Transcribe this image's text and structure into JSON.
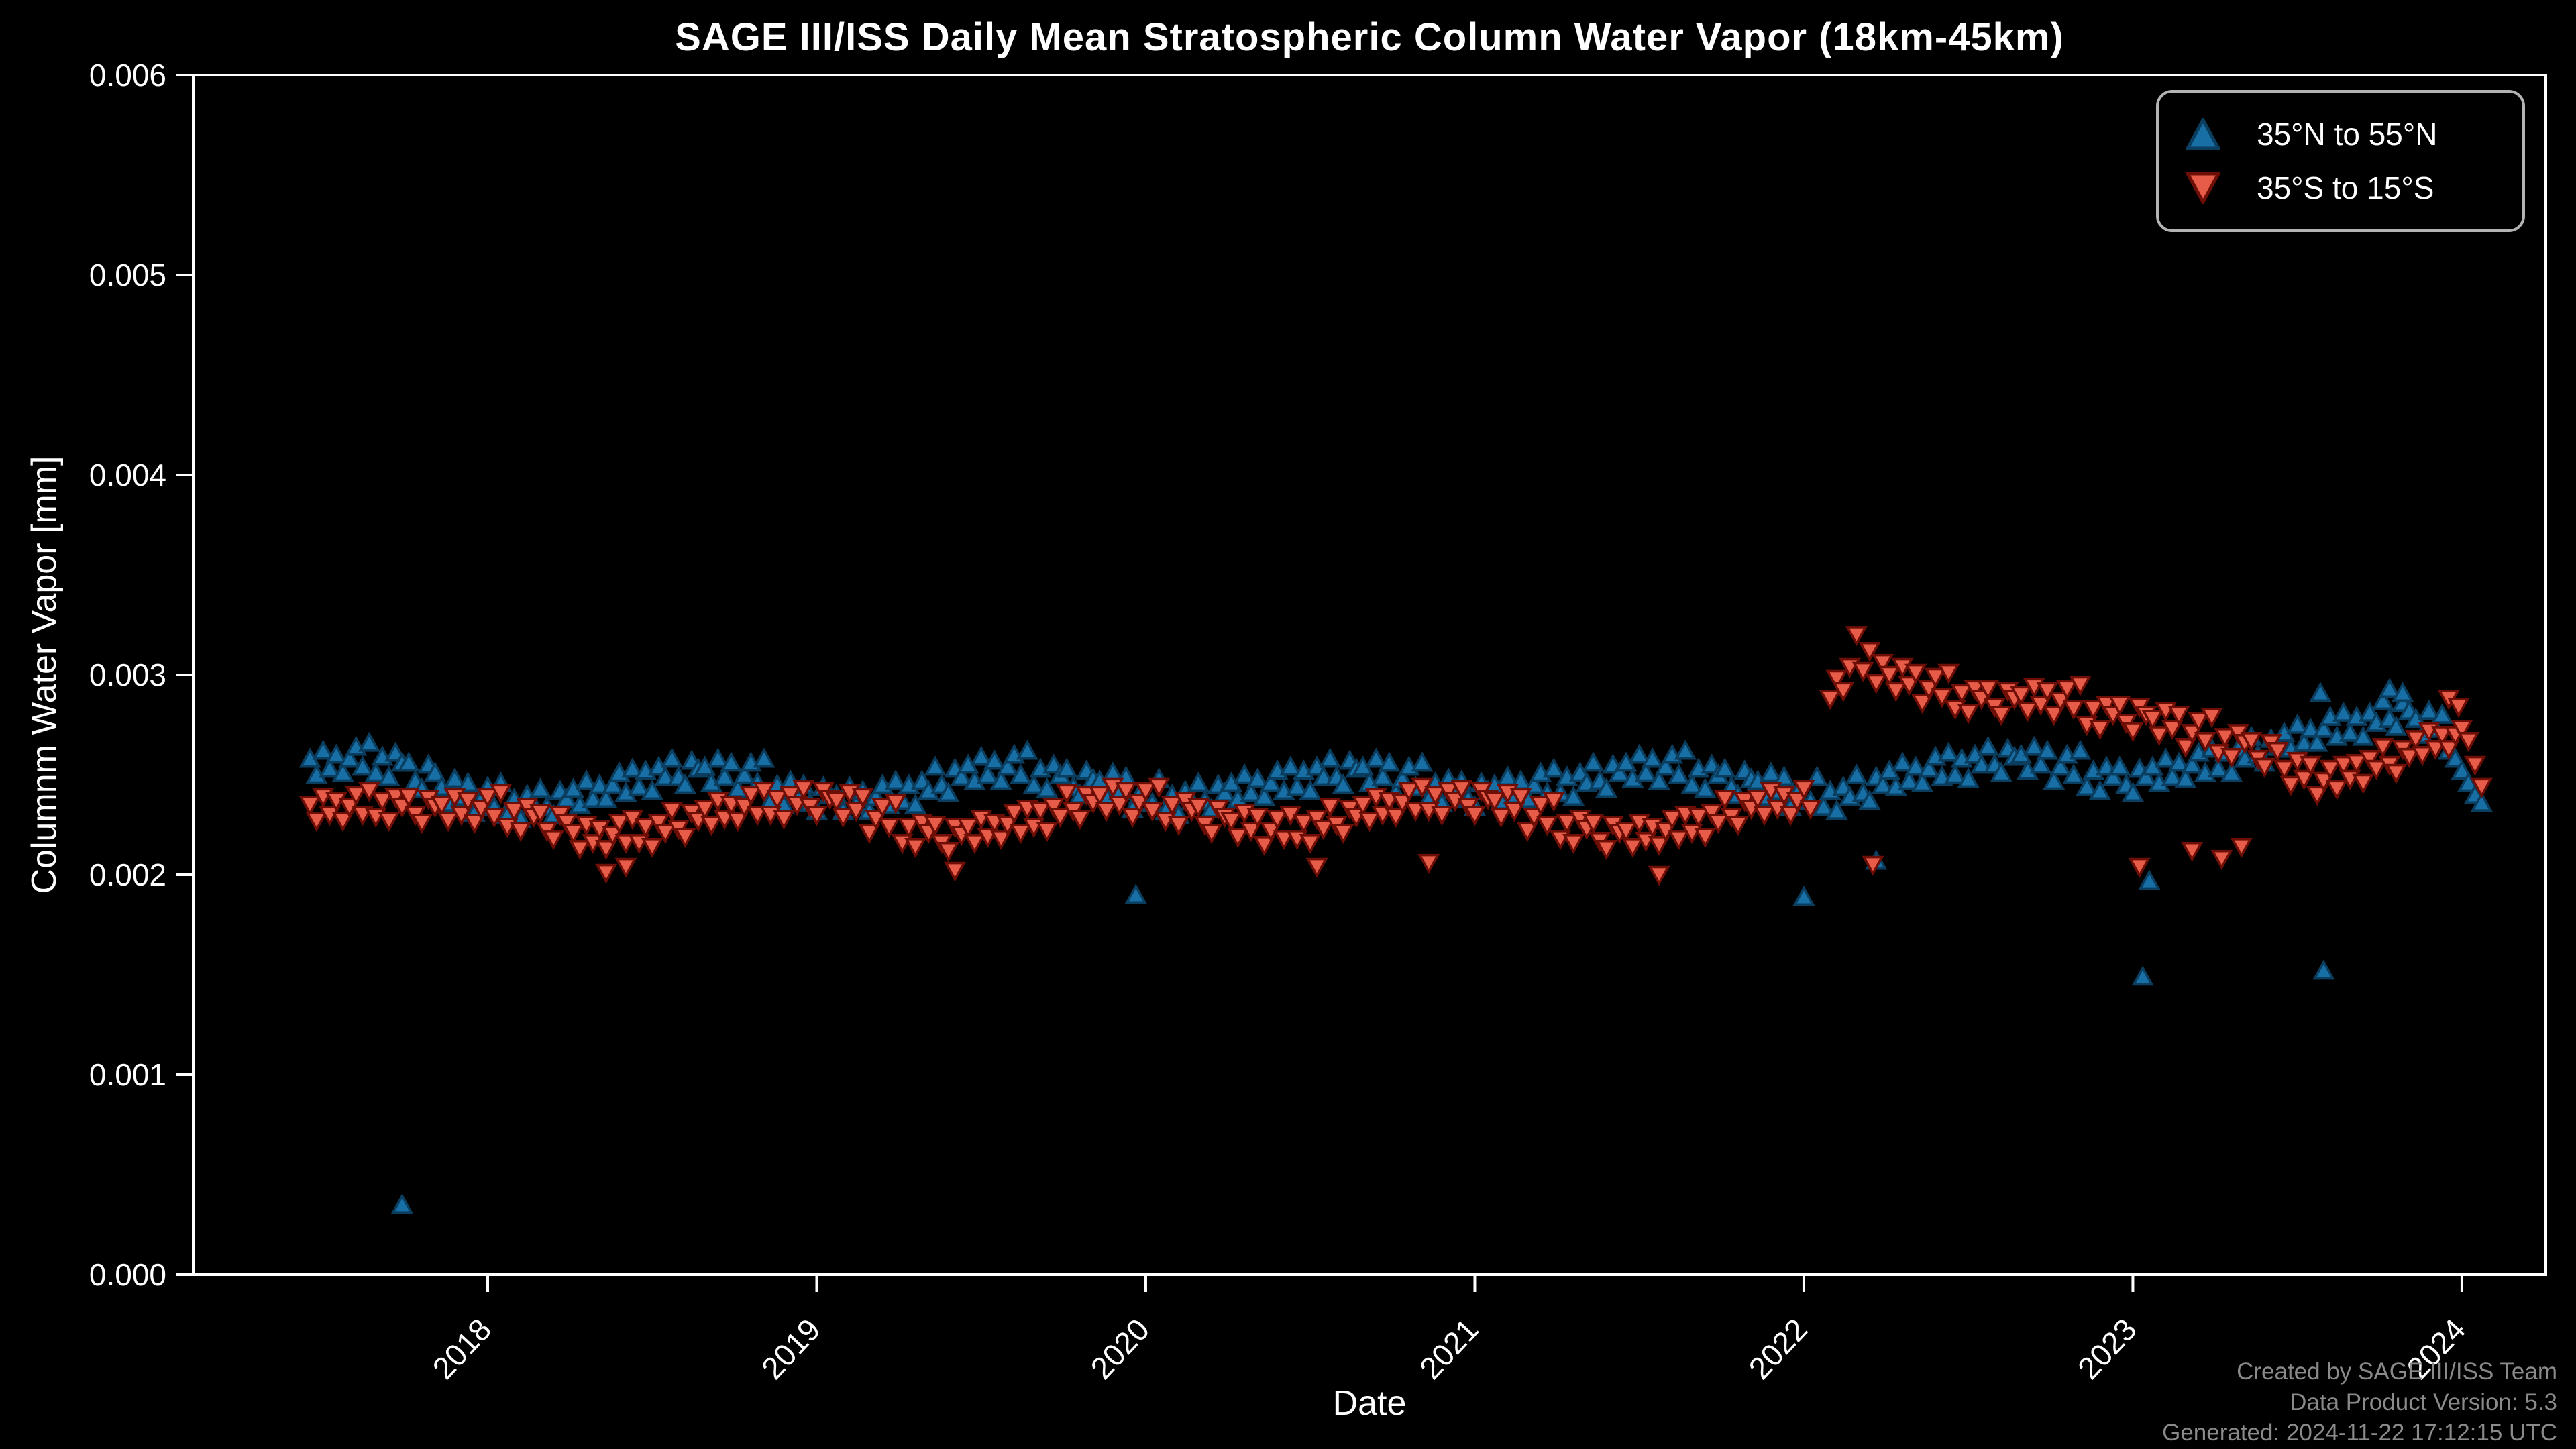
{
  "credits": {
    "line1": "Created by SAGE III/ISS Team",
    "line2": "Data Product Version:  5.3",
    "line3": "Generated: 2024-11-22 17:12:15 UTC"
  },
  "colors": {
    "background": "#000000",
    "foreground": "#ffffff",
    "credits_text": "#8a8a8a",
    "legend_border": "#b3b3b3",
    "north_fill": "#176fa5",
    "north_edge": "#0b3d5e",
    "south_fill": "#e65c49",
    "south_edge": "#6d0e07"
  },
  "chart_data": {
    "type": "scatter",
    "title": "SAGE III/ISS Daily Mean Stratospheric Column Water Vapor (18km-45km)",
    "xlabel": "Date",
    "ylabel": "Columnm Water Vapor [mm]",
    "x_range": [
      2017.105,
      2024.255
    ],
    "y_range": [
      0.0,
      0.006
    ],
    "grid": false,
    "legend_position": "upper right",
    "background": "#000000",
    "foreground": "#ffffff",
    "x_ticks": {
      "values": [
        2018,
        2019,
        2020,
        2021,
        2022,
        2023,
        2024
      ],
      "labels": [
        "2018",
        "2019",
        "2020",
        "2021",
        "2022",
        "2023",
        "2024"
      ]
    },
    "y_ticks": {
      "values": [
        0.0,
        0.001,
        0.002,
        0.003,
        0.004,
        0.005,
        0.006
      ],
      "labels": [
        "0.000",
        "0.001",
        "0.002",
        "0.003",
        "0.004",
        "0.005",
        "0.006"
      ]
    },
    "value_scale_mm": 1e-05,
    "x_start": 2017.46,
    "x_step": 0.02,
    "unit_note": "series values are column water vapor in units of 1e-5 mm at dates x_start + i*x_step (decimal years); null = data gap",
    "series": [
      {
        "name": "35°N to 55°N",
        "marker": "triangle-up",
        "fill": "#176fa5",
        "edge": "#0b3d5e",
        "values": [
          258,
          250,
          262,
          253,
          260,
          251,
          258,
          264,
          254,
          266,
          251,
          259,
          249,
          261,
          256,
          256,
          247,
          243,
          255,
          251,
          244,
          236,
          248,
          239,
          246,
          231,
          238,
          244,
          234,
          246,
          230,
          238,
          228,
          240,
          235,
          243,
          234,
          230,
          242,
          238,
          243,
          235,
          247,
          238,
          245,
          238,
          245,
          251,
          241,
          253,
          244,
          252,
          242,
          254,
          249,
          258,
          249,
          245,
          257,
          253,
          254,
          246,
          258,
          249,
          256,
          243,
          250,
          256,
          246,
          258,
          237,
          245,
          235,
          247,
          242,
          245,
          236,
          232,
          244,
          240,
          240,
          232,
          244,
          235,
          242,
          232,
          239,
          245,
          235,
          247,
          237,
          245,
          235,
          247,
          242,
          254,
          245,
          241,
          253,
          249,
          255,
          247,
          259,
          250,
          257,
          247,
          254,
          260,
          250,
          262,
          245,
          253,
          243,
          255,
          250,
          253,
          244,
          240,
          252,
          248,
          247,
          239,
          251,
          242,
          249,
          233,
          240,
          null,
          236,
          248,
          232,
          240,
          230,
          242,
          237,
          246,
          237,
          233,
          245,
          241,
          246,
          238,
          250,
          241,
          248,
          239,
          246,
          252,
          242,
          254,
          244,
          252,
          242,
          254,
          249,
          258,
          249,
          245,
          257,
          253,
          254,
          246,
          258,
          249,
          256,
          241,
          248,
          254,
          244,
          256,
          238,
          246,
          236,
          248,
          243,
          247,
          238,
          234,
          246,
          242,
          245,
          237,
          249,
          240,
          247,
          238,
          245,
          251,
          241,
          253,
          241,
          249,
          239,
          251,
          246,
          256,
          247,
          243,
          255,
          251,
          256,
          248,
          260,
          251,
          258,
          247,
          254,
          260,
          250,
          262,
          245,
          253,
          243,
          255,
          250,
          253,
          244,
          240,
          252,
          248,
          247,
          239,
          251,
          242,
          249,
          234,
          241,
          null,
          237,
          249,
          234,
          242,
          232,
          244,
          239,
          250,
          241,
          237,
          249,
          245,
          252,
          244,
          256,
          247,
          254,
          246,
          253,
          259,
          249,
          261,
          250,
          258,
          248,
          260,
          255,
          264,
          255,
          251,
          263,
          259,
          260,
          252,
          264,
          255,
          262,
          247,
          254,
          260,
          250,
          262,
          244,
          252,
          242,
          254,
          249,
          254,
          245,
          241,
          253,
          249,
          254,
          246,
          258,
          249,
          256,
          248,
          255,
          261,
          251,
          263,
          253,
          261,
          251,
          263,
          258,
          269,
          260,
          256,
          268,
          264,
          271,
          263,
          275,
          266,
          273,
          266,
          273,
          279,
          269,
          281,
          271,
          279,
          269,
          281,
          276,
          287,
          278,
          274,
          286,
          282,
          278,
          270,
          282,
          273,
          280,
          262,
          258,
          252,
          246,
          240,
          236
        ],
        "extra_points": [
          [
            2017.74,
            35
          ],
          [
            2019.97,
            190
          ],
          [
            2022.0,
            189
          ],
          [
            2022.22,
            207
          ],
          [
            2023.03,
            149
          ],
          [
            2023.05,
            197
          ],
          [
            2023.57,
            291
          ],
          [
            2023.58,
            152
          ],
          [
            2023.78,
            293
          ],
          [
            2023.82,
            291
          ]
        ]
      },
      {
        "name": "35°S to 15°S",
        "marker": "triangle-down",
        "fill": "#e65c49",
        "edge": "#6d0e07",
        "values": [
          235,
          227,
          239,
          230,
          237,
          227,
          234,
          240,
          230,
          242,
          229,
          237,
          227,
          239,
          234,
          239,
          230,
          226,
          238,
          234,
          235,
          227,
          239,
          230,
          237,
          226,
          233,
          239,
          229,
          241,
          224,
          232,
          222,
          234,
          229,
          231,
          222,
          218,
          230,
          226,
          221,
          213,
          225,
          216,
          223,
          213,
          220,
          226,
          216,
          228,
          216,
          224,
          214,
          226,
          221,
          232,
          223,
          219,
          231,
          227,
          233,
          225,
          237,
          228,
          235,
          227,
          234,
          240,
          230,
          242,
          230,
          238,
          228,
          240,
          235,
          243,
          234,
          230,
          242,
          238,
          237,
          229,
          241,
          232,
          239,
          221,
          228,
          234,
          224,
          236,
          216,
          224,
          214,
          226,
          221,
          225,
          216,
          212,
          224,
          220,
          224,
          216,
          228,
          219,
          226,
          218,
          225,
          231,
          221,
          233,
          224,
          232,
          222,
          234,
          229,
          241,
          232,
          228,
          240,
          236,
          240,
          232,
          244,
          235,
          242,
          229,
          236,
          242,
          232,
          244,
          227,
          235,
          225,
          237,
          232,
          234,
          225,
          221,
          233,
          229,
          227,
          219,
          231,
          222,
          229,
          215,
          222,
          228,
          218,
          230,
          218,
          226,
          216,
          228,
          223,
          234,
          225,
          221,
          233,
          229,
          235,
          227,
          239,
          230,
          237,
          229,
          236,
          242,
          232,
          244,
          232,
          240,
          230,
          242,
          237,
          243,
          234,
          230,
          242,
          238,
          237,
          229,
          241,
          232,
          239,
          222,
          229,
          235,
          225,
          237,
          218,
          226,
          216,
          228,
          223,
          226,
          217,
          213,
          225,
          221,
          222,
          214,
          226,
          217,
          224,
          215,
          222,
          228,
          218,
          230,
          221,
          229,
          219,
          231,
          226,
          238,
          229,
          225,
          237,
          233,
          238,
          230,
          242,
          233,
          240,
          230,
          237,
          243,
          233,
          null,
          null,
          288,
          298,
          292,
          304,
          320,
          302,
          312,
          296,
          306,
          300,
          292,
          304,
          295,
          301,
          286,
          293,
          299,
          289,
          301,
          283,
          291,
          281,
          293,
          288,
          293,
          284,
          280,
          292,
          288,
          290,
          282,
          294,
          285,
          292,
          280,
          287,
          293,
          283,
          295,
          275,
          283,
          273,
          285,
          280,
          285,
          276,
          272,
          284,
          280,
          278,
          270,
          282,
          273,
          280,
          264,
          271,
          277,
          267,
          279,
          261,
          269,
          259,
          271,
          266,
          267,
          258,
          254,
          266,
          262,
          253,
          245,
          257,
          248,
          255,
          240,
          247,
          253,
          243,
          255,
          248,
          256,
          246,
          258,
          253,
          264,
          255,
          251,
          263,
          259,
          268,
          260,
          272,
          263,
          270,
          263,
          270,
          273,
          267,
          255,
          244
        ],
        "extra_points": [
          [
            2018.36,
            201
          ],
          [
            2018.42,
            204
          ],
          [
            2019.42,
            202
          ],
          [
            2020.52,
            204
          ],
          [
            2020.86,
            206
          ],
          [
            2021.56,
            200
          ],
          [
            2022.21,
            205
          ],
          [
            2023.02,
            204
          ],
          [
            2023.18,
            212
          ],
          [
            2023.27,
            208
          ],
          [
            2023.33,
            214
          ],
          [
            2023.96,
            288
          ],
          [
            2023.99,
            284
          ]
        ]
      }
    ]
  }
}
